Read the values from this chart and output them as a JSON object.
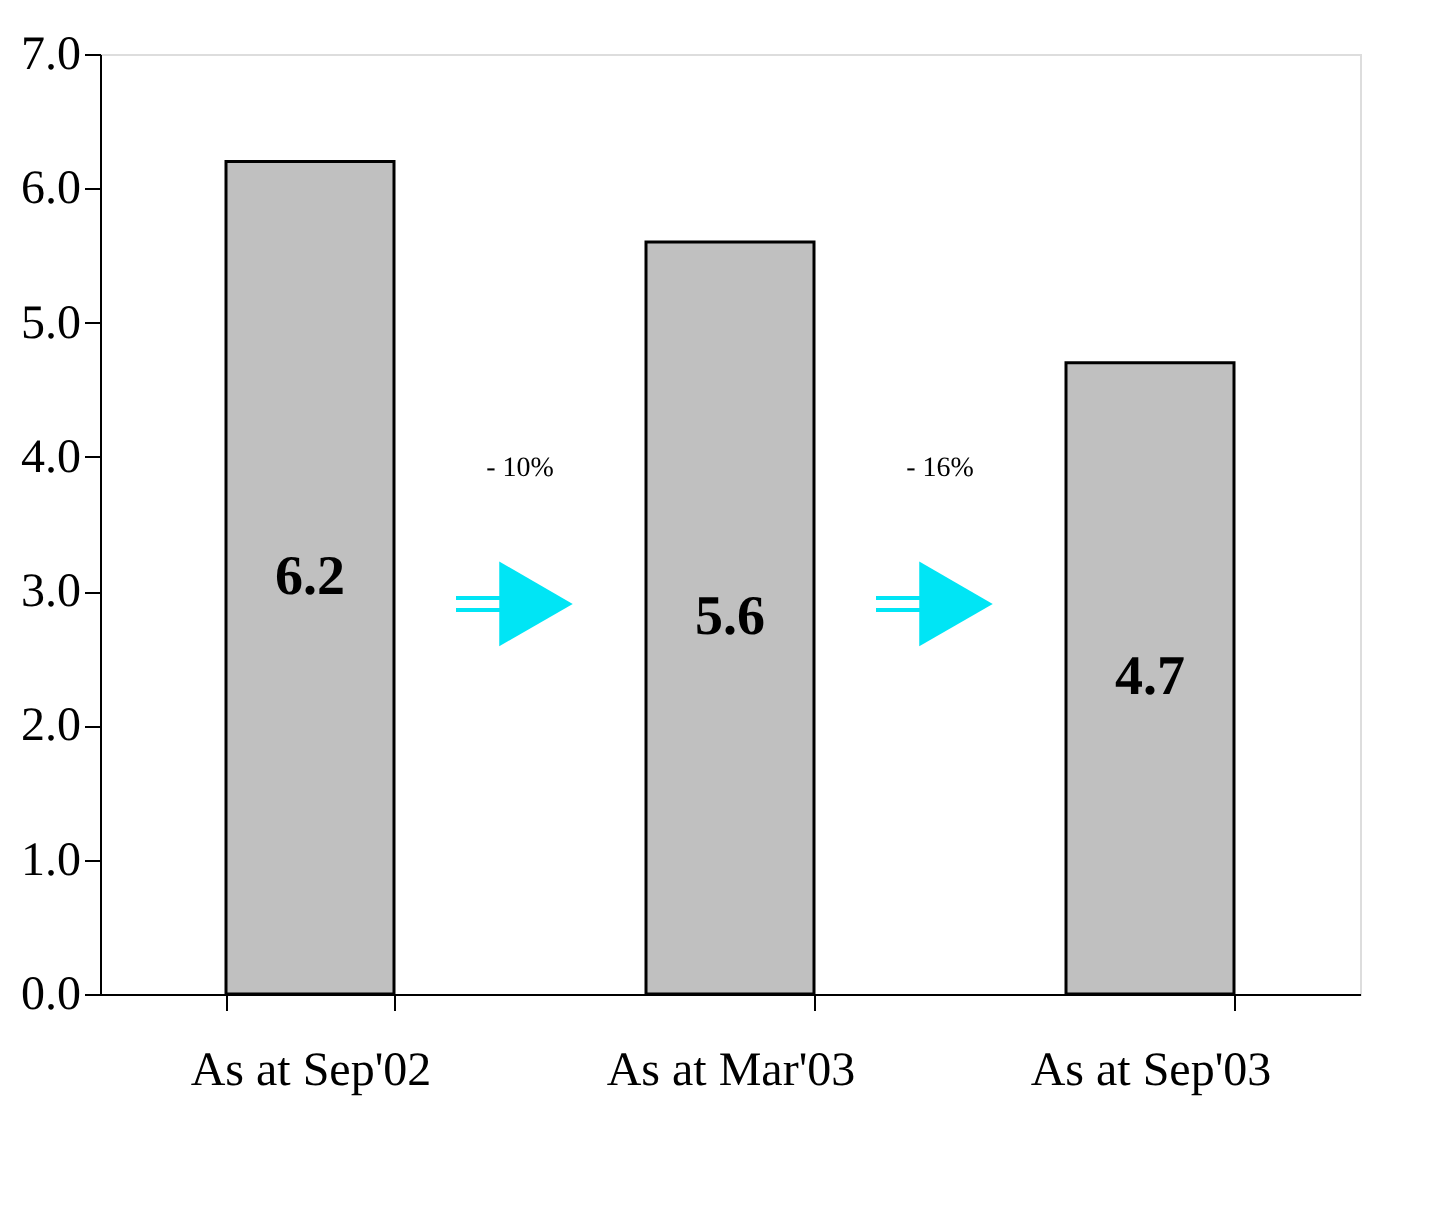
{
  "chart_data": {
    "type": "bar",
    "categories": [
      "As at Sep'02",
      "As at Mar'03",
      "As at Sep'03"
    ],
    "values": [
      6.2,
      5.6,
      4.7
    ],
    "color": "#c0c0c0",
    "data_labels": true,
    "ylim": [
      0,
      7
    ],
    "yticks": [
      {
        "value": 0,
        "label": "0.0"
      },
      {
        "value": 1,
        "label": "1.0"
      },
      {
        "value": 2,
        "label": "2.0"
      },
      {
        "value": 3,
        "label": "3.0"
      },
      {
        "value": 4,
        "label": "4.0"
      },
      {
        "value": 5,
        "label": "5.0"
      },
      {
        "value": 6,
        "label": "6.0"
      },
      {
        "value": 7,
        "label": "7.0"
      }
    ],
    "annotations": [
      "- 10%",
      "- 16%"
    ],
    "grid": false
  }
}
